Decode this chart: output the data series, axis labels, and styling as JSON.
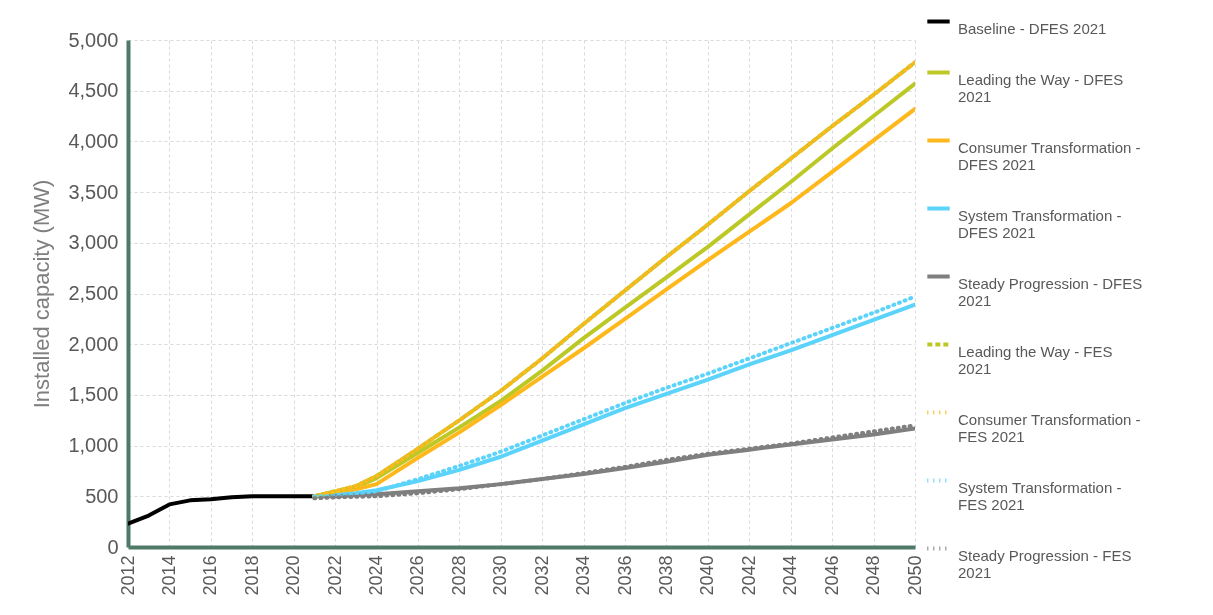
{
  "chart_data": {
    "type": "line",
    "ylabel": "Installed capacity (MW)",
    "xlim": [
      2012,
      2050
    ],
    "xticks": [
      2012,
      2014,
      2016,
      2018,
      2020,
      2022,
      2024,
      2026,
      2028,
      2030,
      2032,
      2034,
      2036,
      2038,
      2040,
      2042,
      2044,
      2046,
      2048,
      2050
    ],
    "ylim": [
      0,
      5000
    ],
    "yticks": [
      0,
      500,
      {
        "value": 1000,
        "label": "1,000"
      },
      {
        "value": 1500,
        "label": "1,500"
      },
      {
        "value": 2000,
        "label": "2,000"
      },
      {
        "value": 2500,
        "label": "2,500"
      },
      {
        "value": 3000,
        "label": "3,000"
      },
      {
        "value": 3500,
        "label": "3,500"
      },
      {
        "value": 4000,
        "label": "4,000"
      },
      {
        "value": 4500,
        "label": "4,500"
      },
      {
        "value": 5000,
        "label": "5,000"
      }
    ],
    "grid": true,
    "legend": "right",
    "series": [
      {
        "name": "Baseline - DFES 2021",
        "color": "#000000",
        "line_style": "solid",
        "x": [
          2012,
          2013,
          2014,
          2015,
          2016,
          2017,
          2018,
          2019,
          2020,
          2021
        ],
        "values": [
          230,
          310,
          420,
          460,
          470,
          490,
          500,
          500,
          500,
          500
        ]
      },
      {
        "name": "Leading the Way - DFES 2021",
        "color": "#bcc826",
        "line_style": "solid",
        "x": [
          2021,
          2022,
          2023,
          2024,
          2026,
          2028,
          2030,
          2032,
          2034,
          2036,
          2038,
          2040,
          2042,
          2044,
          2046,
          2048,
          2050
        ],
        "values": [
          500,
          540,
          590,
          680,
          930,
          1180,
          1440,
          1740,
          2060,
          2360,
          2660,
          2960,
          3280,
          3600,
          3930,
          4250,
          4570
        ]
      },
      {
        "name": "Consumer Transformation - DFES 2021",
        "color": "#ffb81c",
        "line_style": "solid",
        "x": [
          2021,
          2022,
          2023,
          2024,
          2026,
          2028,
          2030,
          2032,
          2034,
          2036,
          2038,
          2040,
          2042,
          2044,
          2046,
          2048,
          2050
        ],
        "values": [
          500,
          530,
          570,
          620,
          880,
          1130,
          1400,
          1680,
          1960,
          2250,
          2540,
          2830,
          3110,
          3390,
          3700,
          4010,
          4320
        ]
      },
      {
        "name": "System Transformation - DFES 2021",
        "color": "#5bd3fb",
        "line_style": "solid",
        "x": [
          2021,
          2022,
          2023,
          2024,
          2026,
          2028,
          2030,
          2032,
          2034,
          2036,
          2038,
          2040,
          2042,
          2044,
          2046,
          2048,
          2050
        ],
        "values": [
          500,
          510,
          530,
          560,
          650,
          760,
          890,
          1050,
          1210,
          1370,
          1510,
          1650,
          1800,
          1940,
          2090,
          2240,
          2390
        ]
      },
      {
        "name": "Steady Progression - DFES 2021",
        "color": "#7f7f7f",
        "line_style": "solid",
        "x": [
          2021,
          2022,
          2024,
          2026,
          2028,
          2030,
          2032,
          2034,
          2036,
          2038,
          2040,
          2042,
          2044,
          2046,
          2048,
          2050
        ],
        "values": [
          500,
          500,
          520,
          550,
          580,
          620,
          670,
          720,
          780,
          840,
          910,
          960,
          1010,
          1060,
          1110,
          1170
        ]
      },
      {
        "name": "Leading the Way - FES 2021",
        "color": "#bcc826",
        "line_style": "dashed",
        "x": [
          2021,
          2022,
          2023,
          2024,
          2026,
          2028,
          2030,
          2032,
          2034,
          2036,
          2038,
          2040,
          2042,
          2044,
          2046,
          2048,
          2050
        ],
        "values": [
          500,
          550,
          600,
          700,
          970,
          1250,
          1540,
          1860,
          2200,
          2530,
          2860,
          3180,
          3510,
          3830,
          4150,
          4460,
          4780
        ]
      },
      {
        "name": "Consumer Transformation - FES 2021",
        "color": "#ffb81c",
        "line_style": "dotted",
        "x": [
          2021,
          2022,
          2023,
          2024,
          2026,
          2028,
          2030,
          2032,
          2034,
          2036,
          2038,
          2040,
          2042,
          2044,
          2046,
          2048,
          2050
        ],
        "values": [
          500,
          550,
          600,
          700,
          970,
          1250,
          1540,
          1860,
          2200,
          2530,
          2860,
          3180,
          3510,
          3830,
          4150,
          4460,
          4780
        ]
      },
      {
        "name": "System Transformation - FES 2021",
        "color": "#5bd3fb",
        "line_style": "dotted",
        "x": [
          2021,
          2022,
          2024,
          2026,
          2028,
          2030,
          2032,
          2034,
          2036,
          2038,
          2040,
          2042,
          2044,
          2046,
          2048,
          2050
        ],
        "values": [
          500,
          500,
          550,
          670,
          800,
          940,
          1100,
          1260,
          1420,
          1570,
          1710,
          1860,
          2010,
          2160,
          2310,
          2470
        ]
      },
      {
        "name": "Steady Progression - FES 2021",
        "color": "#7f7f7f",
        "line_style": "dotted",
        "x": [
          2021,
          2022,
          2024,
          2026,
          2028,
          2030,
          2032,
          2034,
          2036,
          2038,
          2040,
          2042,
          2044,
          2046,
          2048,
          2050
        ],
        "values": [
          480,
          490,
          500,
          530,
          570,
          620,
          670,
          730,
          790,
          860,
          920,
          970,
          1020,
          1080,
          1140,
          1200
        ]
      }
    ]
  }
}
